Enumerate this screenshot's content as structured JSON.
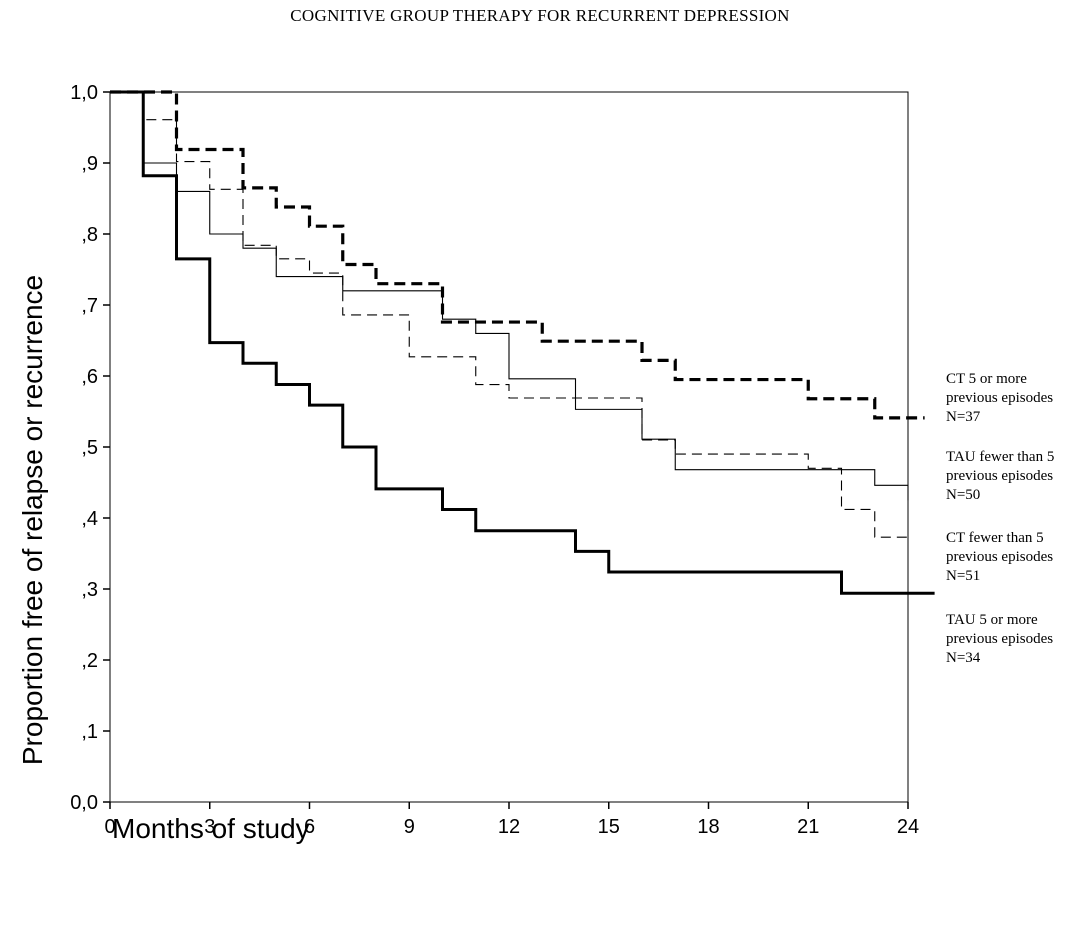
{
  "page_title": "COGNITIVE GROUP THERAPY FOR RECURRENT DEPRESSION",
  "chart_data": {
    "type": "line",
    "xlabel": "Months of study",
    "ylabel": "Proportion free of relapse or recurrence",
    "xlim": [
      0,
      24
    ],
    "ylim": [
      0,
      1
    ],
    "x_ticks": [
      "0",
      "3",
      "6",
      "9",
      "12",
      "15",
      "18",
      "21",
      "24"
    ],
    "y_ticks": [
      "0,0",
      ",1",
      ",2",
      ",3",
      ",4",
      ",5",
      ",6",
      ",7",
      ",8",
      ",9",
      "1,0"
    ],
    "grid": false,
    "legend_position": "right",
    "series": [
      {
        "name": "CT 5 or more previous episodes",
        "legend_lines": [
          "CT  5 or more",
          "previous episodes",
          "N=37"
        ],
        "style": "thick-dashed",
        "x": [
          0,
          2,
          4,
          5,
          6,
          7,
          8,
          10,
          13,
          16,
          17,
          21,
          23,
          24.5
        ],
        "y": [
          1.0,
          0.919,
          0.865,
          0.838,
          0.811,
          0.757,
          0.73,
          0.676,
          0.649,
          0.622,
          0.595,
          0.568,
          0.541,
          0.541
        ]
      },
      {
        "name": "TAU fewer than 5 previous episodes",
        "legend_lines": [
          "TAU fewer than 5",
          "previous episodes",
          "N=50"
        ],
        "style": "thin-solid",
        "x": [
          0,
          1,
          2,
          3,
          4,
          5,
          7,
          10,
          11,
          12,
          14,
          16,
          17,
          22,
          23,
          24
        ],
        "y": [
          1.0,
          0.9,
          0.86,
          0.8,
          0.78,
          0.74,
          0.72,
          0.68,
          0.66,
          0.596,
          0.553,
          0.511,
          0.468,
          0.468,
          0.446,
          0.425
        ]
      },
      {
        "name": "CT fewer than 5 previous episodes",
        "legend_lines": [
          "CT fewer than 5",
          "previous episodes",
          "N=51"
        ],
        "style": "thin-dashed",
        "x": [
          0,
          1,
          2,
          3,
          4,
          5,
          6,
          7,
          9,
          10,
          11,
          12,
          16,
          17,
          21,
          22,
          23,
          24
        ],
        "y": [
          1.0,
          0.961,
          0.902,
          0.863,
          0.784,
          0.765,
          0.745,
          0.686,
          0.627,
          0.627,
          0.588,
          0.569,
          0.51,
          0.49,
          0.47,
          0.412,
          0.373,
          0.373
        ]
      },
      {
        "name": "TAU 5 or more previous episodes",
        "legend_lines": [
          "TAU 5 or more",
          "previous episodes",
          "N=34"
        ],
        "style": "thick-solid",
        "x": [
          0,
          1,
          2,
          3,
          4,
          5,
          6,
          7,
          8,
          10,
          11,
          14,
          15,
          22,
          24.8
        ],
        "y": [
          1.0,
          0.882,
          0.765,
          0.647,
          0.618,
          0.588,
          0.559,
          0.5,
          0.441,
          0.412,
          0.382,
          0.353,
          0.324,
          0.294,
          0.294
        ]
      }
    ]
  }
}
